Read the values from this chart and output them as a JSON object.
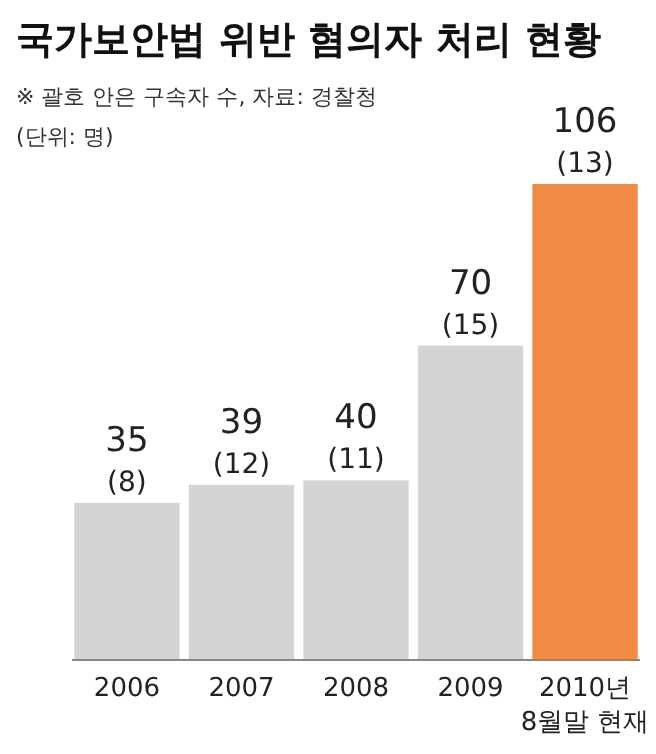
{
  "chart_data": {
    "type": "bar",
    "title": "국가보안법 위반 혐의자 처리 현황",
    "annotations": [
      "※ 괄호 안은 구속자 수, 자료: 경찰청",
      "(단위: 명)"
    ],
    "categories": [
      "2006",
      "2007",
      "2008",
      "2009",
      "2010년\n8월말 현재"
    ],
    "values": [
      35,
      39,
      40,
      70,
      106
    ],
    "colors": [
      "#d4d4d4",
      "#d4d4d4",
      "#d4d4d4",
      "#d4d4d4",
      "#f08a44"
    ],
    "value_labels": [
      "35\n(8)",
      "39\n(12)",
      "40\n(11)",
      "70\n(15)",
      "106\n(13)"
    ]
  }
}
